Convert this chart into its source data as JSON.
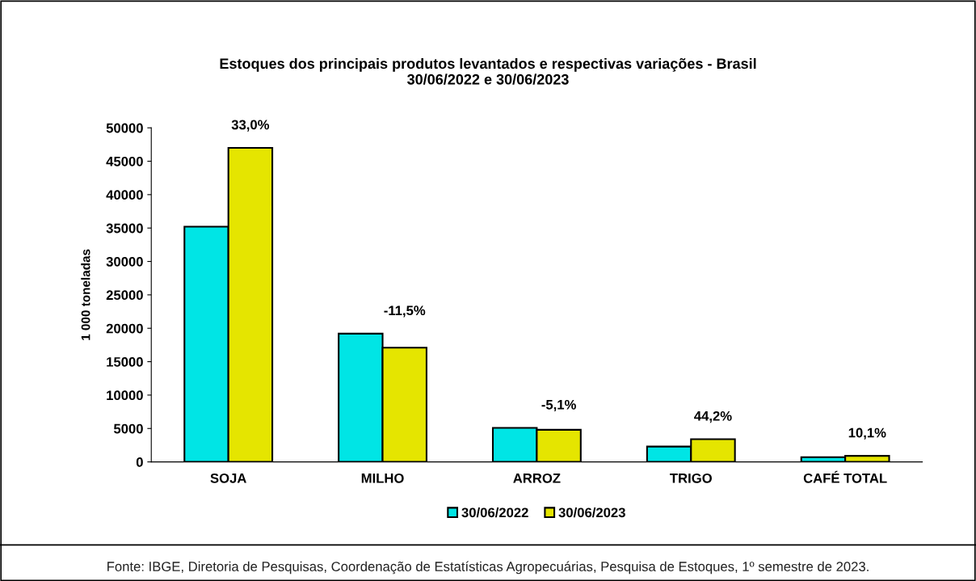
{
  "chart_data": {
    "type": "bar",
    "title": "Estoques dos principais produtos levantados e respectivas variações - Brasil\n30/06/2022 e 30/06/2023",
    "ylabel": "1 000 toneladas",
    "categories": [
      "SOJA",
      "MILHO",
      "ARROZ",
      "TRIGO",
      "CAFÉ TOTAL"
    ],
    "series": [
      {
        "name": "30/06/2022",
        "color": "#00e5e5",
        "values": [
          35200,
          19200,
          5100,
          2300,
          700
        ]
      },
      {
        "name": "30/06/2023",
        "color": "#e5e500",
        "values": [
          47000,
          17100,
          4800,
          3400,
          900
        ]
      }
    ],
    "ylim": [
      0,
      50000
    ],
    "yticks": [
      0,
      5000,
      10000,
      15000,
      20000,
      25000,
      30000,
      35000,
      40000,
      45000,
      50000
    ],
    "grid": false,
    "legend": "bottom",
    "annotations": [
      {
        "text": "33,0%",
        "x": "SOJA",
        "y": 47000
      },
      {
        "text": "-11,5%",
        "x": "MILHO",
        "y": 17100
      },
      {
        "text": "-5,1%",
        "x": "ARROZ",
        "y": 4800
      },
      {
        "text": "44,2%",
        "x": "TRIGO",
        "y": 3400
      },
      {
        "text": "10,1%",
        "x": "CAFÉ TOTAL",
        "y": 900
      },
      "Fonte: IBGE, Diretoria de Pesquisas, Coordenação de Estatísticas Agropecuárias, Pesquisa de Estoques, 1º semestre de 2023."
    ]
  }
}
